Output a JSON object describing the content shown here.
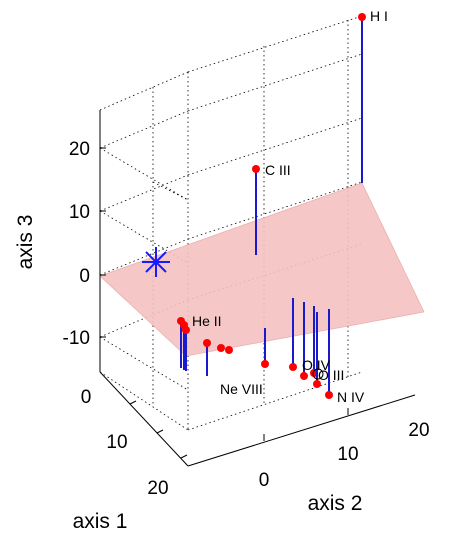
{
  "chart_data": {
    "type": "scatter",
    "title": "",
    "xlabel": "axis 1",
    "ylabel": "axis 2",
    "zlabel": "axis 3",
    "xlim": [
      -5,
      25
    ],
    "ylim": [
      -5,
      25
    ],
    "zlim": [
      -15,
      25
    ],
    "x_ticks": [
      "0",
      "10",
      "20"
    ],
    "y_ticks": [
      "0",
      "10",
      "20"
    ],
    "z_ticks": [
      "-10",
      "0",
      "10",
      "20"
    ],
    "grid": true,
    "plane": {
      "description": "fitted plane",
      "color": "#f4c2c2"
    },
    "star_marker": {
      "color": "#1a1aff"
    },
    "colors": {
      "point": "#ff0000",
      "stem": "#1a1acc",
      "plane": "#f4c2c2",
      "star": "#1a1aff"
    },
    "points": [
      {
        "label": "H I",
        "stem": "up"
      },
      {
        "label": "C III",
        "stem": "down"
      },
      {
        "label": "He II",
        "stem": "down"
      },
      {
        "label": "",
        "stem": "down"
      },
      {
        "label": "",
        "stem": "down"
      },
      {
        "label": "",
        "stem": "down"
      },
      {
        "label": "",
        "stem": "down"
      },
      {
        "label": "",
        "stem": "down"
      },
      {
        "label": "Ne VIII",
        "stem": "down"
      },
      {
        "label": "",
        "stem": "down"
      },
      {
        "label": "O IV",
        "stem": "down"
      },
      {
        "label": "",
        "stem": "down"
      },
      {
        "label": "O III",
        "stem": "down"
      },
      {
        "label": "N IV",
        "stem": "down"
      }
    ]
  }
}
